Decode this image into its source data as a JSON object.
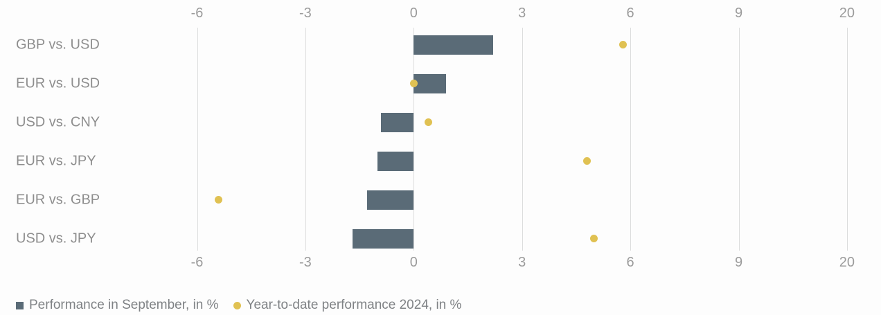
{
  "chart_data": {
    "type": "bar",
    "orientation": "horizontal",
    "title": "",
    "categories": [
      "GBP vs. USD",
      "EUR vs. USD",
      "USD vs. CNY",
      "EUR vs. JPY",
      "EUR vs. GBP",
      "USD vs. JPY"
    ],
    "series": [
      {
        "name": "Performance in September, in %",
        "render_as": "bar",
        "color": "#5a6b77",
        "values": [
          2.2,
          0.9,
          -0.9,
          -1.0,
          -1.3,
          -1.7
        ]
      },
      {
        "name": "Year-to-date performance 2024, in %",
        "render_as": "dot",
        "color": "#e0c152",
        "values": [
          5.8,
          0.0,
          0.4,
          4.8,
          -5.4,
          5.0
        ]
      }
    ],
    "x_ticks": [
      "-6",
      "-3",
      "0",
      "3",
      "6",
      "9",
      "20"
    ],
    "x_tick_values": [
      -6,
      -3,
      0,
      3,
      6,
      9,
      20
    ],
    "x_axis_position": "top-and-bottom",
    "axis_note": "ticks evenly spaced; final tick 20 breaks the linear scale",
    "grid": true,
    "legend_position": "bottom-left",
    "colors": {
      "gridline": "#dcdddd",
      "tick_text": "#9b9b9b",
      "category_text": "#8e8e8e",
      "legend_text": "#7f8285",
      "background": "#fdfdfd"
    }
  }
}
